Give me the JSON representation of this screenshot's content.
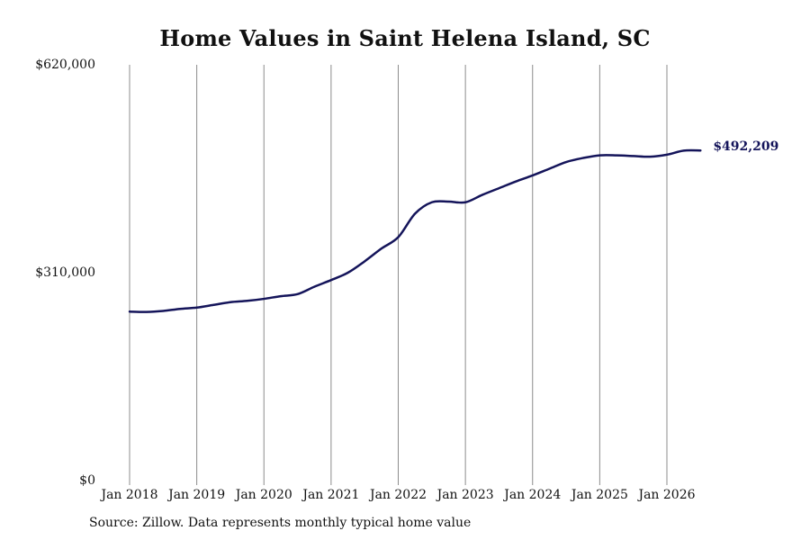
{
  "chart_data": {
    "type": "line",
    "title": "Home Values in Saint Helena Island, SC",
    "xlabel": "",
    "ylabel": "",
    "ylim": [
      0,
      620000
    ],
    "y_ticks": [
      0,
      310000,
      620000
    ],
    "y_tick_labels": [
      "$0",
      "$310,000",
      "$620,000"
    ],
    "x_ticks": [
      "2018-01",
      "2019-01",
      "2020-01",
      "2021-01",
      "2022-01",
      "2023-01",
      "2024-01",
      "2025-01",
      "2026-01"
    ],
    "x_tick_labels": [
      "Jan 2018",
      "Jan 2019",
      "Jan 2020",
      "Jan 2021",
      "Jan 2022",
      "Jan 2023",
      "Jan 2024",
      "Jan 2025",
      "Jan 2026"
    ],
    "x_range": [
      "2018-01",
      "2026-07"
    ],
    "grid": {
      "vertical": true,
      "horizontal": false
    },
    "line_color": "#14145a",
    "grid_color": "#8c8c8c",
    "end_label": "$492,209",
    "series": [
      {
        "x": [
          "2018-01",
          "2018-04",
          "2018-07",
          "2018-10",
          "2019-01",
          "2019-04",
          "2019-07",
          "2019-10",
          "2020-01",
          "2020-04",
          "2020-07",
          "2020-10",
          "2021-01",
          "2021-04",
          "2021-07",
          "2021-10",
          "2022-01",
          "2022-04",
          "2022-07",
          "2022-10",
          "2023-01",
          "2023-04",
          "2023-07",
          "2023-10",
          "2024-01",
          "2024-04",
          "2024-07",
          "2024-10",
          "2025-01",
          "2025-04",
          "2025-07",
          "2025-10",
          "2026-01",
          "2026-04",
          "2026-07"
        ],
        "values": [
          252000,
          251500,
          253000,
          256000,
          258000,
          262000,
          266000,
          268000,
          271000,
          275000,
          278000,
          289000,
          299000,
          310000,
          327000,
          346000,
          363000,
          398000,
          415000,
          416000,
          415000,
          426000,
          436000,
          446000,
          455000,
          465000,
          475000,
          481000,
          485000,
          485000,
          484000,
          483000,
          486000,
          492000,
          492209
        ]
      }
    ]
  },
  "footer": {
    "source": "Source: Zillow. Data represents monthly typical home value"
  }
}
